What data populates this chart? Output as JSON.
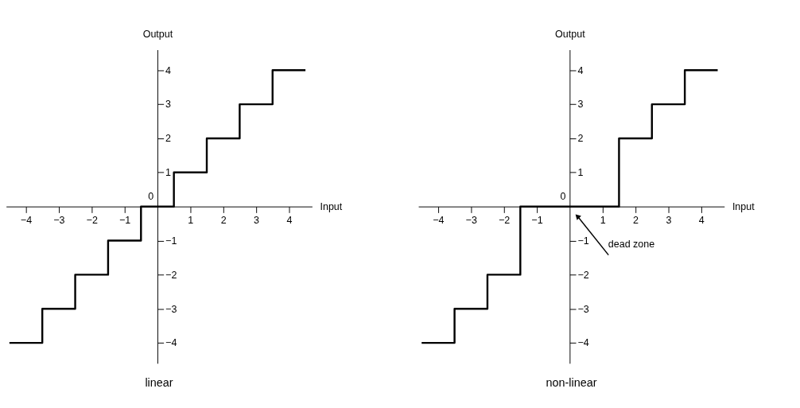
{
  "chart_data": [
    {
      "type": "step",
      "title": "linear",
      "xlabel": "Input",
      "ylabel": "Output",
      "grid": false,
      "legend": false,
      "xlim": [
        -4.6,
        4.7
      ],
      "ylim": [
        -4.6,
        4.6
      ],
      "xticks": [
        -4,
        -3,
        -2,
        -1,
        1,
        2,
        3,
        4
      ],
      "yticks": [
        -4,
        -3,
        -2,
        -1,
        1,
        2,
        3,
        4
      ],
      "series": [
        {
          "color": "#000000",
          "x": [
            -4.5,
            -3.5,
            -2.5,
            -1.5,
            -0.5,
            0.5,
            1.5,
            2.5,
            3.5,
            4.5
          ],
          "values": [
            -4,
            -3,
            -2,
            -1,
            0,
            1,
            2,
            3,
            4,
            4
          ]
        }
      ],
      "annotations": [
        "0"
      ]
    },
    {
      "type": "step",
      "title": "non-linear",
      "xlabel": "Input",
      "ylabel": "Output",
      "grid": false,
      "legend": false,
      "xlim": [
        -4.6,
        4.7
      ],
      "ylim": [
        -4.6,
        4.6
      ],
      "xticks": [
        -4,
        -3,
        -2,
        -1,
        1,
        2,
        3,
        4
      ],
      "yticks": [
        -4,
        -3,
        -2,
        -1,
        1,
        2,
        3,
        4
      ],
      "series": [
        {
          "color": "#000000",
          "x": [
            -4.5,
            -3.5,
            -2.5,
            -1.5,
            1.5,
            2.5,
            3.5,
            4.5
          ],
          "values": [
            -4,
            -3,
            -2,
            0,
            2,
            3,
            4,
            4
          ]
        }
      ],
      "annotations": [
        "0",
        {
          "text": "dead zone",
          "x": 0.25,
          "y": -0.3
        }
      ]
    }
  ]
}
